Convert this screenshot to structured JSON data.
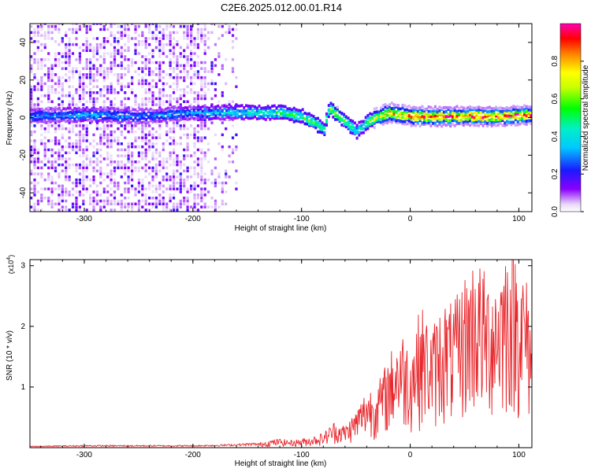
{
  "title": "C2E6.2025.012.00.01.R14",
  "charts": {
    "spectrogram": {
      "xlabel": "Height of straight line (km)",
      "ylabel": "Frequency (Hz)",
      "xticks": [
        "-300",
        "-200",
        "-100",
        "0",
        "100"
      ],
      "yticks": [
        "40",
        "20",
        "0",
        "-20",
        "-40"
      ],
      "colorbar_label": "Normalized spectral amplitude",
      "colorbar_ticks": [
        "0.0",
        "0.2",
        "0.4",
        "0.6",
        "0.8"
      ]
    },
    "snr": {
      "xlabel": "Height of straight line (km)",
      "ylabel": "SNR (10 * v/v)",
      "multiplier_base": "(x10",
      "multiplier_exp": "4",
      "multiplier_close": ")",
      "xticks": [
        "-300",
        "-200",
        "-100",
        "0",
        "100"
      ],
      "yticks": [
        "1",
        "2",
        "3"
      ]
    }
  },
  "chart_data": [
    {
      "type": "heatmap",
      "title": "C2E6.2025.012.00.01.R14",
      "xlabel": "Height of straight line (km)",
      "ylabel": "Frequency (Hz)",
      "xlim": [
        -350,
        112
      ],
      "ylim": [
        -50,
        50
      ],
      "colorbar": {
        "label": "Normalized spectral amplitude",
        "range": [
          0,
          1
        ],
        "colormap": "rainbow (violet to red to magenta)"
      },
      "ridge": {
        "x": [
          -350,
          -300,
          -250,
          -200,
          -150,
          -120,
          -100,
          -90,
          -80,
          -75,
          -70,
          -60,
          -50,
          -40,
          -30,
          -20,
          -10,
          0,
          20,
          50,
          80,
          112
        ],
        "frequency": [
          0,
          1,
          0,
          2,
          2,
          2,
          0,
          -3,
          -7,
          5,
          2,
          -3,
          -8,
          -3,
          0,
          2,
          1,
          0,
          0,
          0,
          0,
          1
        ],
        "amplitude": [
          0.3,
          0.35,
          0.3,
          0.35,
          0.45,
          0.5,
          0.55,
          0.6,
          0.55,
          0.6,
          0.65,
          0.55,
          0.45,
          0.55,
          0.75,
          0.85,
          0.85,
          0.9,
          0.95,
          0.95,
          0.95,
          0.9
        ]
      },
      "noise_band": {
        "x_range": [
          -350,
          -160
        ],
        "frequency_range": [
          -50,
          50
        ]
      }
    },
    {
      "type": "line",
      "xlabel": "Height of straight line (km)",
      "ylabel": "SNR (10 * v/v)",
      "xlim": [
        -350,
        112
      ],
      "ylim": [
        0,
        3.1
      ],
      "y_multiplier": 10000,
      "series": [
        {
          "color": "#e8262b",
          "x": [
            -350,
            -300,
            -250,
            -200,
            -170,
            -140,
            -130,
            -120,
            -110,
            -100,
            -90,
            -80,
            -70,
            -60,
            -50,
            -40,
            -30,
            -20,
            -10,
            0,
            10,
            20,
            30,
            40,
            50,
            60,
            70,
            80,
            90,
            100,
            112
          ],
          "y": [
            0.02,
            0.03,
            0.03,
            0.03,
            0.04,
            0.06,
            0.1,
            0.12,
            0.1,
            0.12,
            0.15,
            0.2,
            0.35,
            0.3,
            0.5,
            0.8,
            0.85,
            1.2,
            1.6,
            1.4,
            1.9,
            1.6,
            2.0,
            1.9,
            2.3,
            2.6,
            2.3,
            2.4,
            2.8,
            2.6,
            2.0
          ]
        }
      ]
    }
  ]
}
